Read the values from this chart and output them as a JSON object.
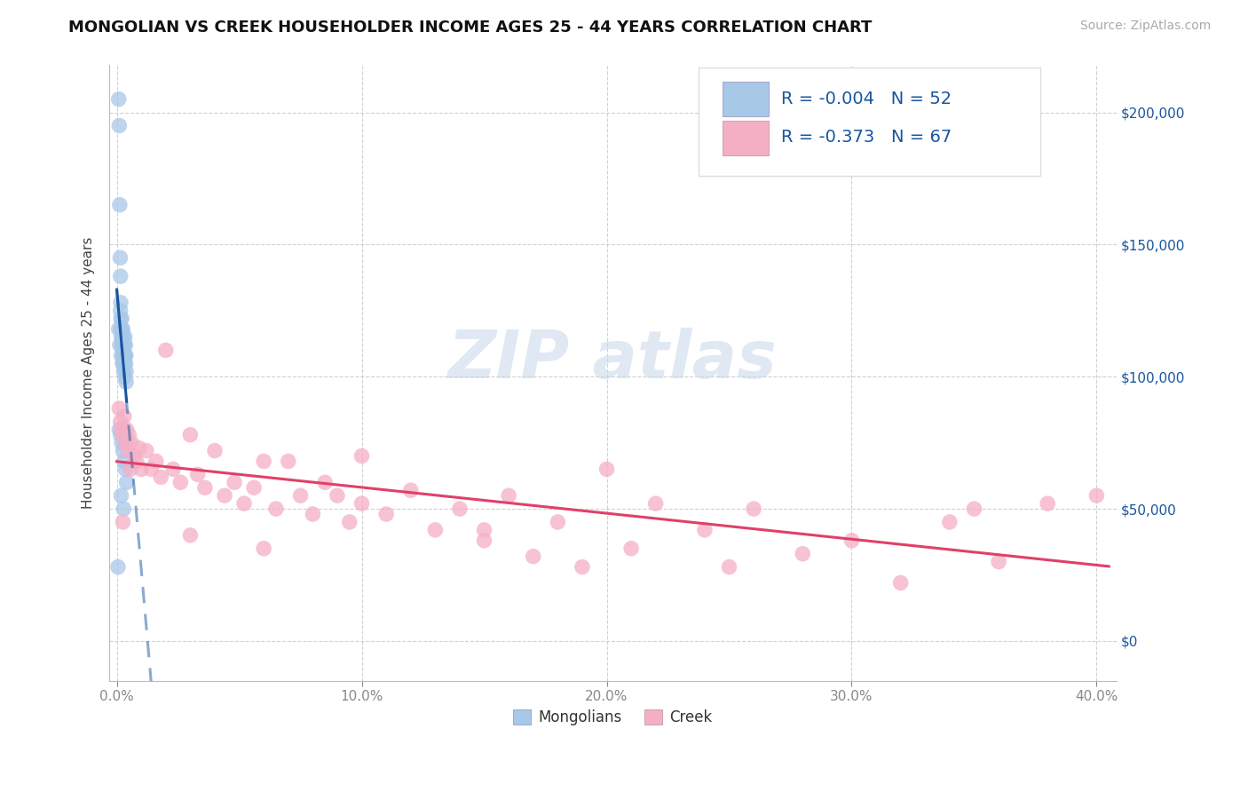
{
  "title": "MONGOLIAN VS CREEK HOUSEHOLDER INCOME AGES 25 - 44 YEARS CORRELATION CHART",
  "source": "Source: ZipAtlas.com",
  "ylabel": "Householder Income Ages 25 - 44 years",
  "xlim": [
    -0.003,
    0.408
  ],
  "ylim": [
    -15000,
    218000
  ],
  "xticks": [
    0.0,
    0.1,
    0.2,
    0.3,
    0.4
  ],
  "xticklabels": [
    "0.0%",
    "10.0%",
    "20.0%",
    "30.0%",
    "40.0%"
  ],
  "ytick_vals": [
    0,
    50000,
    100000,
    150000,
    200000
  ],
  "ytick_labels_right": [
    "$0",
    "$50,000",
    "$100,000",
    "$150,000",
    "$200,000"
  ],
  "mongolian_color": "#a8c8e8",
  "creek_color": "#f5afc5",
  "mongolian_line_color": "#1855a0",
  "creek_line_color": "#e0406a",
  "grid_color": "#cccccc",
  "watermark_color": "#c8d8ea",
  "legend_text_color": "#1855a0",
  "axis_label_color": "#1855a0",
  "R_mongolian": "-0.004",
  "N_mongolian": "52",
  "R_creek": "-0.373",
  "N_creek": "67",
  "mongolian_x": [
    0.0008,
    0.001,
    0.0012,
    0.0014,
    0.0015,
    0.0016,
    0.0017,
    0.0018,
    0.0019,
    0.002,
    0.0021,
    0.0022,
    0.0023,
    0.0024,
    0.0025,
    0.0026,
    0.0027,
    0.0028,
    0.0029,
    0.003,
    0.0031,
    0.0032,
    0.0033,
    0.0034,
    0.0035,
    0.0036,
    0.0037,
    0.0038,
    0.0015,
    0.002,
    0.0022,
    0.0025,
    0.0027,
    0.003,
    0.0032,
    0.0008,
    0.0012,
    0.0018,
    0.0023,
    0.0028,
    0.0033,
    0.0038,
    0.001,
    0.0015,
    0.002,
    0.0025,
    0.003,
    0.0035,
    0.004,
    0.0018,
    0.0028,
    0.0005
  ],
  "mongolian_y": [
    205000,
    195000,
    165000,
    145000,
    138000,
    128000,
    122000,
    118000,
    115000,
    122000,
    118000,
    115000,
    112000,
    118000,
    112000,
    108000,
    115000,
    110000,
    105000,
    112000,
    108000,
    105000,
    115000,
    108000,
    112000,
    105000,
    108000,
    102000,
    125000,
    118000,
    112000,
    108000,
    105000,
    112000,
    108000,
    118000,
    112000,
    108000,
    105000,
    102000,
    100000,
    98000,
    80000,
    78000,
    75000,
    72000,
    68000,
    65000,
    60000,
    55000,
    50000,
    28000
  ],
  "creek_x": [
    0.001,
    0.0015,
    0.002,
    0.0025,
    0.003,
    0.0035,
    0.004,
    0.0045,
    0.005,
    0.006,
    0.007,
    0.008,
    0.009,
    0.01,
    0.012,
    0.014,
    0.016,
    0.018,
    0.02,
    0.023,
    0.026,
    0.03,
    0.033,
    0.036,
    0.04,
    0.044,
    0.048,
    0.052,
    0.056,
    0.06,
    0.065,
    0.07,
    0.075,
    0.08,
    0.085,
    0.09,
    0.095,
    0.1,
    0.11,
    0.12,
    0.13,
    0.14,
    0.15,
    0.16,
    0.17,
    0.18,
    0.19,
    0.2,
    0.21,
    0.22,
    0.24,
    0.26,
    0.28,
    0.3,
    0.32,
    0.34,
    0.36,
    0.38,
    0.4,
    0.0025,
    0.0055,
    0.03,
    0.06,
    0.1,
    0.15,
    0.25,
    0.35
  ],
  "creek_y": [
    88000,
    83000,
    80000,
    78000,
    85000,
    75000,
    80000,
    72000,
    78000,
    75000,
    70000,
    68000,
    73000,
    65000,
    72000,
    65000,
    68000,
    62000,
    110000,
    65000,
    60000,
    78000,
    63000,
    58000,
    72000,
    55000,
    60000,
    52000,
    58000,
    68000,
    50000,
    68000,
    55000,
    48000,
    60000,
    55000,
    45000,
    52000,
    48000,
    57000,
    42000,
    50000,
    38000,
    55000,
    32000,
    45000,
    28000,
    65000,
    35000,
    52000,
    42000,
    50000,
    33000,
    38000,
    22000,
    45000,
    30000,
    52000,
    55000,
    45000,
    65000,
    40000,
    35000,
    70000,
    42000,
    28000,
    50000
  ]
}
